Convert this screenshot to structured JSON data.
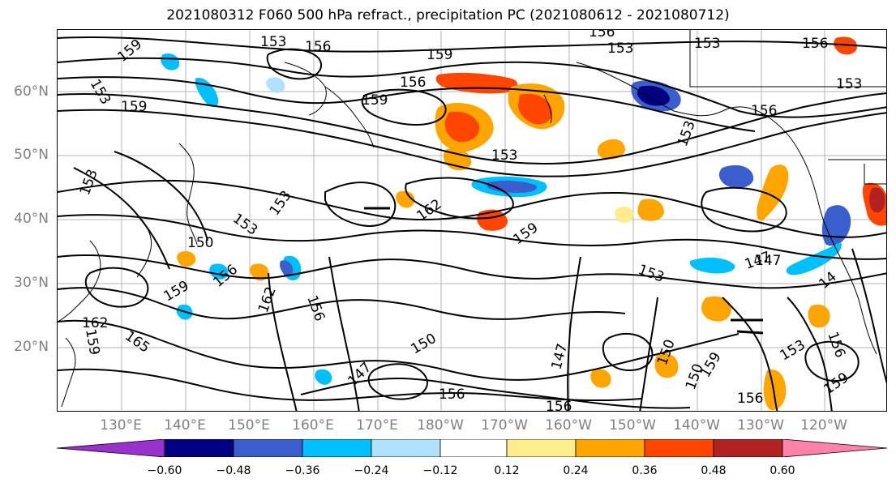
{
  "title": "2021080312 F060 500 hPa refract., precipitation PC (2021080612 - 2021080712)",
  "lat_labels": [
    "60°N",
    "50°N",
    "40°N",
    "30°N",
    "20°N"
  ],
  "lon_labels": [
    "130°E",
    "140°E",
    "150°E",
    "160°E",
    "170°E",
    "180°W",
    "170°W",
    "160°W",
    "150°W",
    "140°W",
    "130°W",
    "120°W"
  ],
  "colorbar": {
    "ticks": [
      "−0.60",
      "−0.48",
      "−0.36",
      "−0.24",
      "−0.12",
      "0.12",
      "0.24",
      "0.36",
      "0.48",
      "0.60"
    ],
    "colors": [
      "#9932CC",
      "#000080",
      "#3A5FCD",
      "#00BFFF",
      "#B0E2FF",
      "#FFFFFF",
      "#FFEC8B",
      "#FFA500",
      "#FF4500",
      "#B22222",
      "#FF82AB"
    ]
  },
  "contour_labels": [
    {
      "text": "153"
    },
    {
      "text": "156"
    },
    {
      "text": "156"
    },
    {
      "text": "153"
    },
    {
      "text": "156"
    },
    {
      "text": "159"
    },
    {
      "text": "153"
    },
    {
      "text": "159"
    },
    {
      "text": "156"
    },
    {
      "text": "159"
    },
    {
      "text": "153"
    },
    {
      "text": "153"
    },
    {
      "text": "156"
    },
    {
      "text": "153"
    },
    {
      "text": "153"
    },
    {
      "text": "159"
    },
    {
      "text": "153"
    },
    {
      "text": "153"
    },
    {
      "text": "162"
    },
    {
      "text": "159"
    },
    {
      "text": "150"
    },
    {
      "text": "153"
    },
    {
      "text": "147"
    },
    {
      "text": "159"
    },
    {
      "text": "156"
    },
    {
      "text": "162"
    },
    {
      "text": "156"
    },
    {
      "text": "153"
    },
    {
      "text": "147"
    },
    {
      "text": "159"
    },
    {
      "text": "162"
    },
    {
      "text": "165"
    },
    {
      "text": "150"
    },
    {
      "text": "147"
    },
    {
      "text": "147"
    },
    {
      "text": "150"
    },
    {
      "text": "156"
    },
    {
      "text": "156"
    },
    {
      "text": "150"
    },
    {
      "text": "159"
    },
    {
      "text": "156"
    },
    {
      "text": "159"
    },
    {
      "text": "153"
    },
    {
      "text": "156"
    },
    {
      "text": "14"
    }
  ]
}
